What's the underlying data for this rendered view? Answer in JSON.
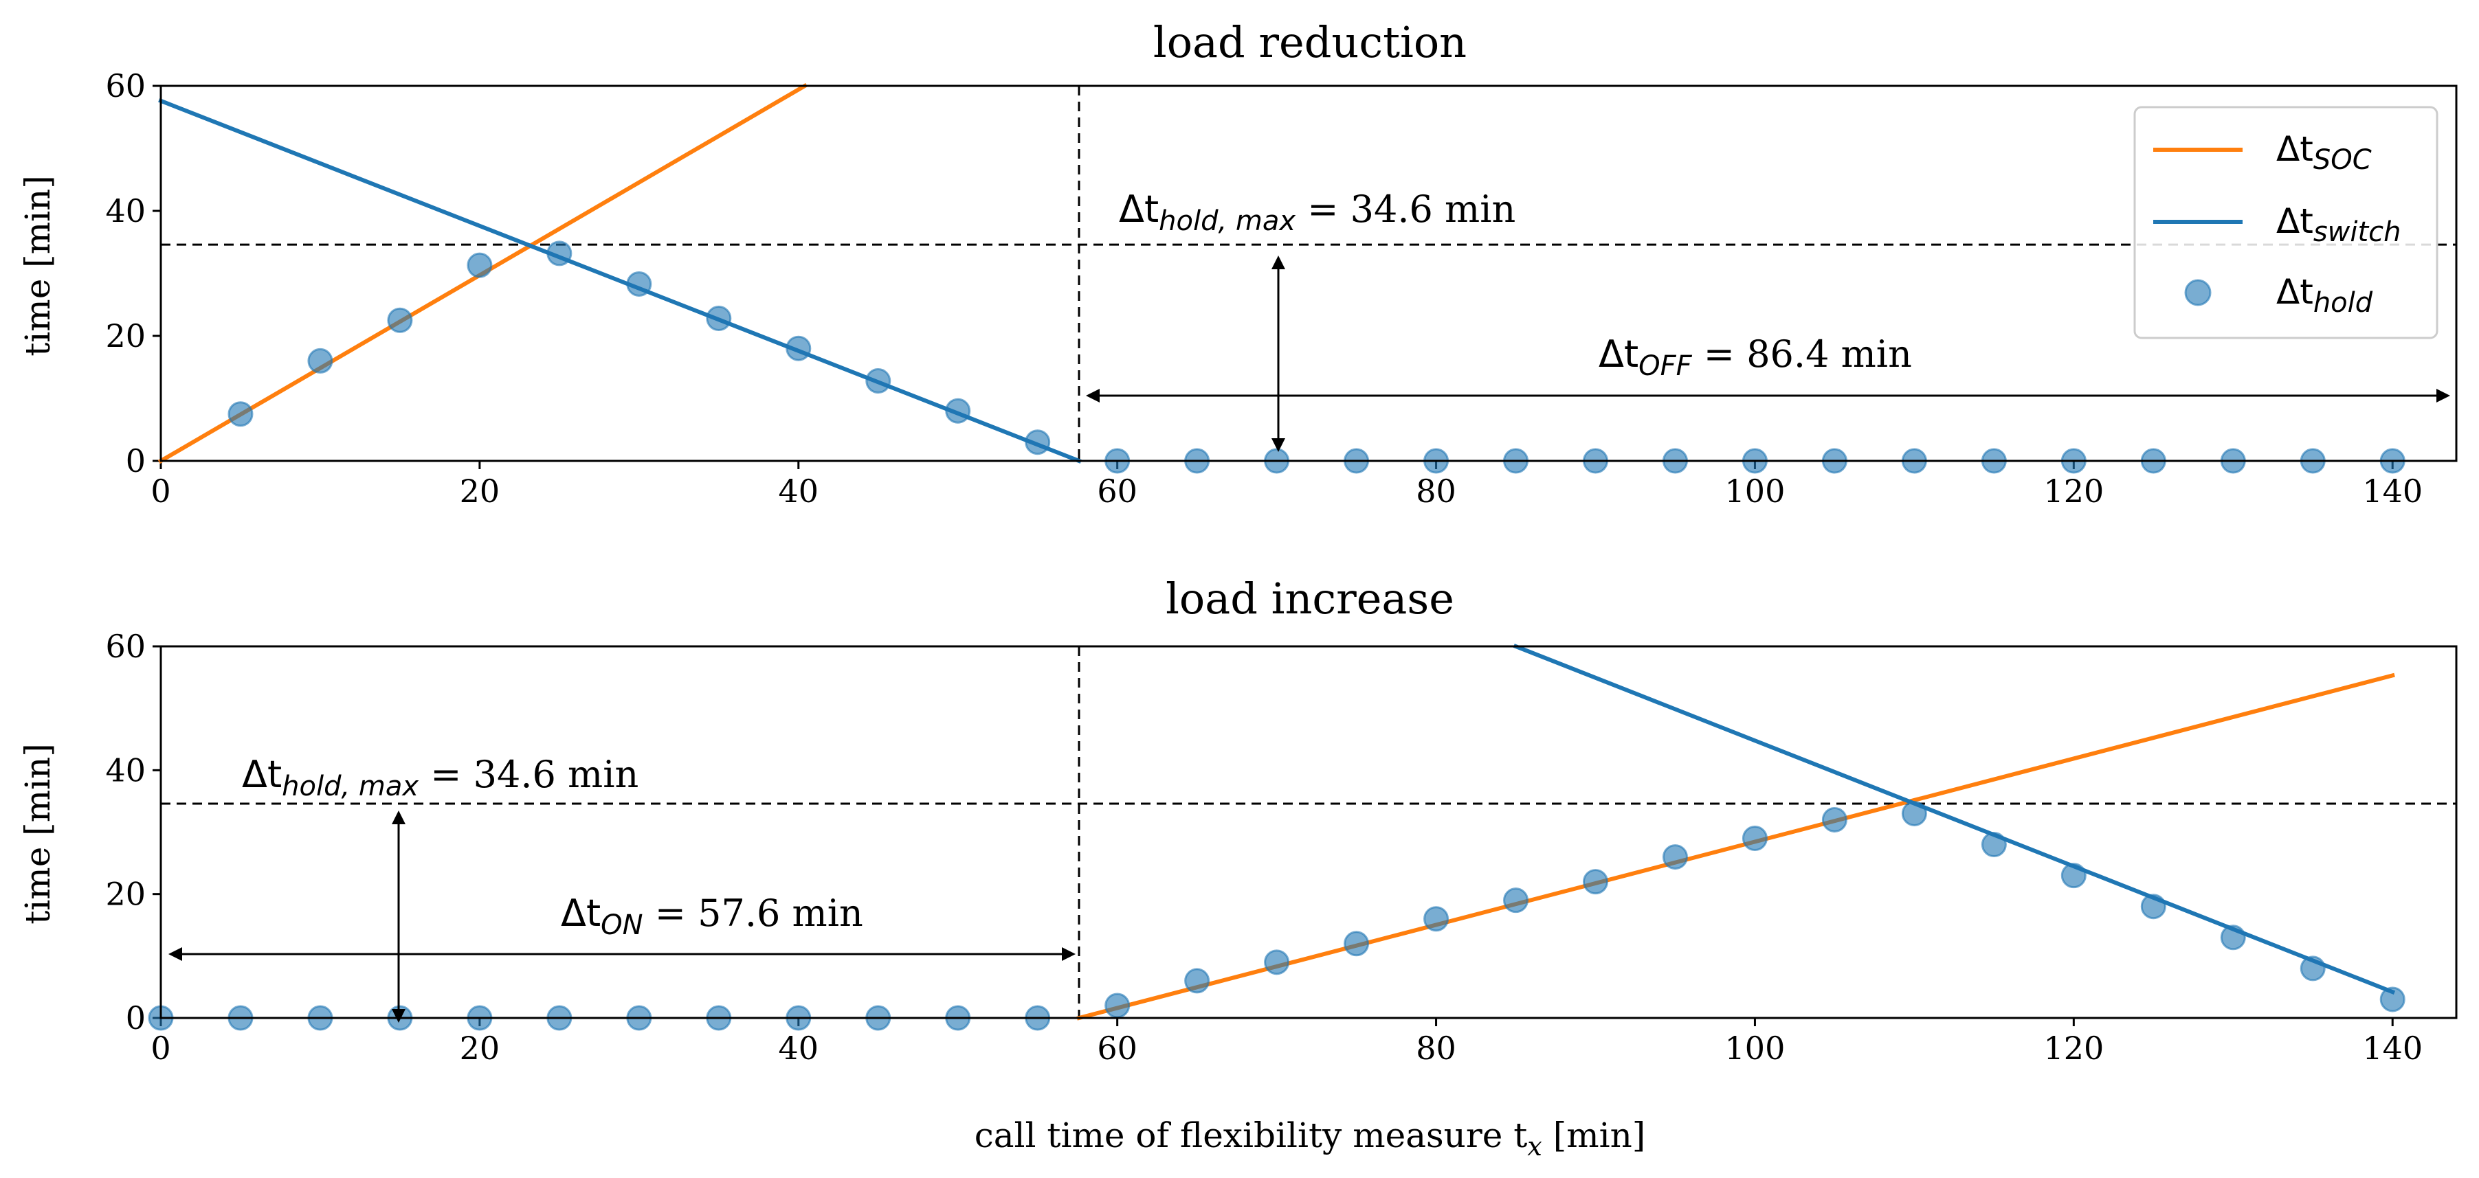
{
  "chart_data": [
    {
      "type": "line",
      "title": "load reduction",
      "xlabel": "",
      "ylabel": "time [min]",
      "xlim": [
        0,
        144
      ],
      "ylim": [
        0,
        60
      ],
      "xticks": [
        "0",
        "20",
        "40",
        "60",
        "80",
        "100",
        "120",
        "140"
      ],
      "yticks": [
        "0",
        "20",
        "40",
        "60"
      ],
      "series": [
        {
          "name": "Δt_SOC",
          "color": "#ff7f0e",
          "x": [
            0,
            40.4
          ],
          "y": [
            0,
            60
          ]
        },
        {
          "name": "Δt_switch",
          "color": "#1f77b4",
          "x": [
            0,
            57.6
          ],
          "y": [
            57.6,
            0
          ]
        },
        {
          "name": "Δt_hold",
          "color": "#1f77b4",
          "kind": "scatter",
          "x": [
            5,
            10,
            15,
            20,
            25,
            30,
            35,
            40,
            45,
            50,
            55,
            60,
            65,
            70,
            75,
            80,
            85,
            90,
            95,
            100,
            105,
            110,
            115,
            120,
            125,
            130,
            135,
            140
          ],
          "y": [
            7.5,
            16,
            22.5,
            31.3,
            33.2,
            28.3,
            22.8,
            18,
            12.8,
            8,
            3,
            0,
            0,
            0,
            0,
            0,
            0,
            0,
            0,
            0,
            0,
            0,
            0,
            0,
            0,
            0,
            0,
            0
          ]
        }
      ],
      "hline": 34.6,
      "vline": 57.6,
      "annotations": [
        {
          "sym": "Δt",
          "sub": "hold, max",
          "text": " = 34.6 min"
        },
        {
          "sym": "Δt",
          "sub": "OFF",
          "text": " = 86.4 min"
        }
      ],
      "legend": {
        "position": "top-right",
        "entries": [
          {
            "sym": "Δt",
            "sub": "SOC"
          },
          {
            "sym": "Δt",
            "sub": "switch"
          },
          {
            "sym": "Δt",
            "sub": "hold"
          }
        ]
      }
    },
    {
      "type": "line",
      "title": "load increase",
      "xlabel": "call time of flexibility measure t",
      "xlabel_sub": "x",
      "xlabel_unit": " [min]",
      "ylabel": "time [min]",
      "xlim": [
        0,
        144
      ],
      "ylim": [
        0,
        60
      ],
      "xticks": [
        "0",
        "20",
        "40",
        "60",
        "80",
        "100",
        "120",
        "140"
      ],
      "yticks": [
        "0",
        "20",
        "40",
        "60"
      ],
      "series": [
        {
          "name": "Δt_SOC",
          "color": "#ff7f0e",
          "x": [
            57.6,
            140
          ],
          "y": [
            0,
            55.3
          ]
        },
        {
          "name": "Δt_switch",
          "color": "#1f77b4",
          "x": [
            85,
            140
          ],
          "y": [
            60,
            4.2
          ]
        },
        {
          "name": "Δt_hold",
          "color": "#1f77b4",
          "kind": "scatter",
          "x": [
            0,
            5,
            10,
            15,
            20,
            25,
            30,
            35,
            40,
            45,
            50,
            55,
            60,
            65,
            70,
            75,
            80,
            85,
            90,
            95,
            100,
            105,
            110,
            115,
            120,
            125,
            130,
            135,
            140
          ],
          "y": [
            0,
            0,
            0,
            0,
            0,
            0,
            0,
            0,
            0,
            0,
            0,
            0,
            2,
            6,
            9,
            12,
            16,
            19,
            22,
            26,
            29,
            32,
            33,
            28,
            23,
            18,
            13,
            8,
            3
          ]
        }
      ],
      "hline": 34.6,
      "vline": 57.6,
      "annotations": [
        {
          "sym": "Δt",
          "sub": "hold, max",
          "text": " = 34.6 min"
        },
        {
          "sym": "Δt",
          "sub": "ON",
          "text": " = 57.6 min"
        }
      ]
    }
  ]
}
